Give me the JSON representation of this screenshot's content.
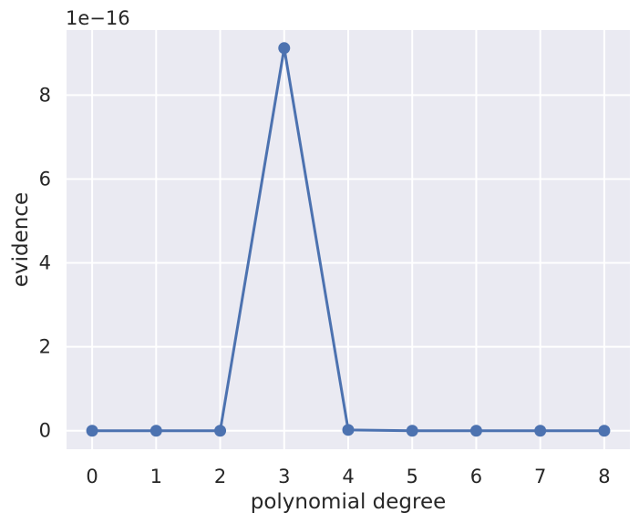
{
  "chart_data": {
    "type": "line",
    "xlabel": "polynomial degree",
    "ylabel": "evidence",
    "y_offset_label": "1e−16",
    "x": [
      0,
      1,
      2,
      3,
      4,
      5,
      6,
      7,
      8
    ],
    "series": [
      {
        "values": [
          0.0,
          0.0,
          0.0,
          9.12,
          0.02,
          0.0,
          0.0,
          0.0,
          0.0
        ],
        "color": "#4c72b0",
        "marker": "circle"
      }
    ],
    "xlim": [
      -0.4,
      8.4
    ],
    "ylim": [
      -0.44,
      9.55
    ],
    "x_ticks": [
      0,
      1,
      2,
      3,
      4,
      5,
      6,
      7,
      8
    ],
    "y_ticks": [
      0,
      2,
      4,
      6,
      8
    ],
    "grid": true,
    "background_color": "#eaeaf2",
    "grid_color": "#ffffff"
  }
}
